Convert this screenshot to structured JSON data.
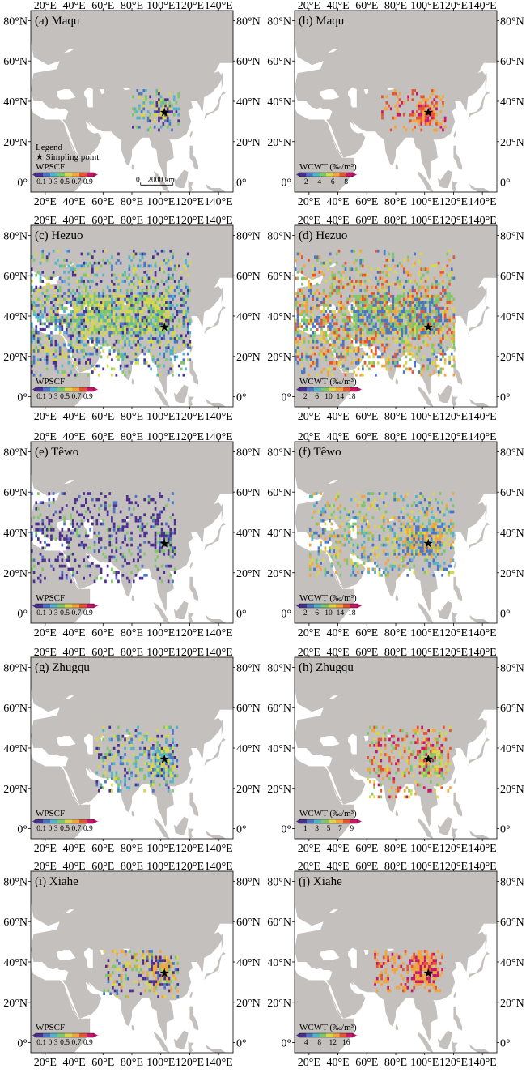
{
  "panels": [
    {
      "label": "(a) Maqu",
      "legend_title": "WPSCF",
      "ticks": [
        "0.1",
        "0.3",
        "0.5",
        "0.7",
        "0.9"
      ],
      "type": "wpscf"
    },
    {
      "label": "(b) Maqu",
      "legend_title": "WCWT (‰/m³)",
      "ticks": [
        "2",
        "4",
        "6",
        "8"
      ],
      "type": "wcwt"
    },
    {
      "label": "(c) Hezuo",
      "legend_title": "WPSCF",
      "ticks": [
        "0.1",
        "0.3",
        "0.5",
        "0.7",
        "0.9"
      ],
      "type": "wpscf"
    },
    {
      "label": "(d) Hezuo",
      "legend_title": "WCWT (‰/m³)",
      "ticks": [
        "2",
        "6",
        "10",
        "14",
        "18"
      ],
      "type": "wcwt"
    },
    {
      "label": "(e) Têwo",
      "legend_title": "WPSCF",
      "ticks": [
        "0.1",
        "0.3",
        "0.5",
        "0.7",
        "0.9"
      ],
      "type": "wpscf"
    },
    {
      "label": "(f) Têwo",
      "legend_title": "WCWT (‰/m³)",
      "ticks": [
        "2",
        "6",
        "10",
        "14",
        "18"
      ],
      "type": "wcwt"
    },
    {
      "label": "(g) Zhugqu",
      "legend_title": "WPSCF",
      "ticks": [
        "0.1",
        "0.3",
        "0.5",
        "0.7",
        "0.9"
      ],
      "type": "wpscf"
    },
    {
      "label": "(h) Zhugqu",
      "legend_title": "WCWT (‰/m³)",
      "ticks": [
        "1",
        "3",
        "5",
        "7",
        "9"
      ],
      "type": "wcwt"
    },
    {
      "label": "(i) Xiahe",
      "legend_title": "WPSCF",
      "ticks": [
        "0.1",
        "0.3",
        "0.5",
        "0.7",
        "0.9"
      ],
      "type": "wpscf"
    },
    {
      "label": "(j) Xiahe",
      "legend_title": "WCWT (‰/m³)",
      "ticks": [
        "4",
        "8",
        "12",
        "16"
      ],
      "type": "wcwt"
    }
  ],
  "axes": {
    "lon_labels": [
      "20°E",
      "40°E",
      "60°E",
      "80°E",
      "100°E",
      "120°E",
      "140°E"
    ],
    "lat_labels": [
      "0°",
      "20°N",
      "40°N",
      "60°N",
      "80°N"
    ]
  },
  "legend_extra": {
    "legend_label": "Legend",
    "sampling_point_label": "Simpling point",
    "scale_zero": "0",
    "scale_distance": "2000 km"
  },
  "colors": {
    "land": "#c4c0bd",
    "ocean": "#ffffff",
    "colorbar": [
      "#4b2f8f",
      "#4a74c4",
      "#4fb3c9",
      "#7dc66a",
      "#d9d64a",
      "#f2a53a",
      "#e8532f",
      "#c8176a"
    ]
  }
}
